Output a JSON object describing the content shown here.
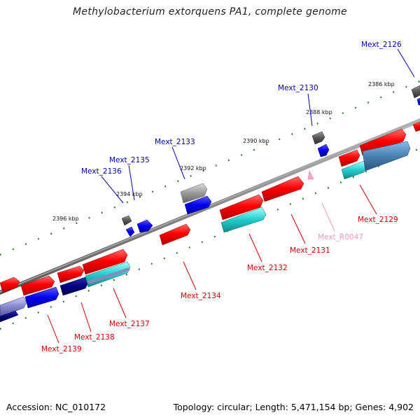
{
  "title": "Methylobacterium extorquens PA1, complete genome",
  "footer": {
    "accession": "Accession: NC_010172",
    "summary": "Topology: circular; Length: 5,471,154 bp; Genes: 4,902"
  },
  "scale_labels": [
    "2396 kbp",
    "2394 kbp",
    "2392 kbp",
    "2390 kbp",
    "2388 kbp",
    "2386 kbp"
  ],
  "gene_labels": [
    {
      "text": "Mext_2126",
      "color": "#0000aa"
    },
    {
      "text": "Mext_2130",
      "color": "#0000aa"
    },
    {
      "text": "Mext_2133",
      "color": "#0000aa"
    },
    {
      "text": "Mext_2135",
      "color": "#0000aa"
    },
    {
      "text": "Mext_2136",
      "color": "#0000aa"
    },
    {
      "text": "Mext_2129",
      "color": "#cc0000"
    },
    {
      "text": "Mext_R0047",
      "color": "#ee99bb"
    },
    {
      "text": "Mext_2131",
      "color": "#cc0000"
    },
    {
      "text": "Mext_2132",
      "color": "#cc0000"
    },
    {
      "text": "Mext_2134",
      "color": "#cc0000"
    },
    {
      "text": "Mext_2137",
      "color": "#cc0000"
    },
    {
      "text": "Mext_2138",
      "color": "#cc0000"
    },
    {
      "text": "Mext_2139",
      "color": "#cc0000"
    }
  ],
  "colors": {
    "forward_gene": "#ff0000",
    "reverse_gene": "#0000ee",
    "cyan_gene": "#22dddd",
    "navy_gene": "#000088",
    "gray_gene": "#888888",
    "pink_rna": "#ffaacc",
    "backbone": "#888888",
    "tick": "#006600"
  }
}
